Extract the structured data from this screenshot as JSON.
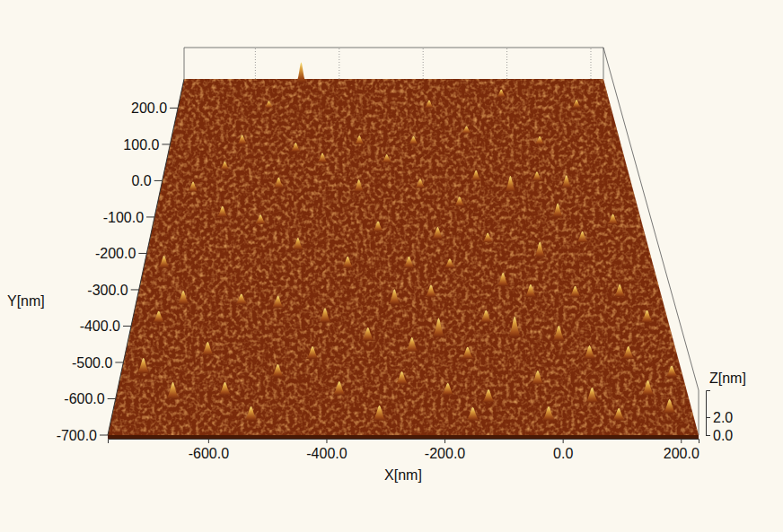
{
  "chart_data": {
    "type": "surface",
    "x_label": "X[nm]",
    "y_label": "Y[nm]",
    "z_label": "Z[nm]",
    "xlim": [
      -770,
      230
    ],
    "ylim": [
      -700,
      280
    ],
    "zlim": [
      0,
      5
    ],
    "xticks": [
      {
        "value": -600,
        "label": "-600.0"
      },
      {
        "value": -400,
        "label": "-400.0"
      },
      {
        "value": -200,
        "label": "-200.0"
      },
      {
        "value": 0,
        "label": "0.0"
      },
      {
        "value": 200,
        "label": "200.0"
      }
    ],
    "yticks": [
      {
        "value": -700,
        "label": "-700.0"
      },
      {
        "value": -600,
        "label": "-600.0"
      },
      {
        "value": -500,
        "label": "-500.0"
      },
      {
        "value": -400,
        "label": "-400.0"
      },
      {
        "value": -300,
        "label": "-300.0"
      },
      {
        "value": -200,
        "label": "-200.0"
      },
      {
        "value": -100,
        "label": "-100.0"
      },
      {
        "value": 0,
        "label": "0.0"
      },
      {
        "value": 100,
        "label": "100.0"
      },
      {
        "value": 200,
        "label": "200.0"
      }
    ],
    "zticks": [
      {
        "value": 0,
        "label": "0.0"
      },
      {
        "value": 2,
        "label": "2.0"
      }
    ],
    "peaks": {
      "x": [
        -490,
        -20,
        150,
        -190,
        -560,
        -110,
        -350,
        -230,
        50,
        -610,
        -490,
        -430,
        -290,
        -30,
        -640,
        -100,
        30,
        -520,
        -220,
        90,
        -350,
        -700,
        -140,
        -630,
        60,
        170,
        -550,
        -310,
        -190,
        -90,
        100,
        -470,
        10,
        -370,
        -730,
        -250,
        -170,
        -70,
        -20,
        -210,
        150,
        65,
        -280,
        -680,
        -570,
        -500,
        -110,
        190,
        -720,
        -410,
        -200,
        -60,
        -330,
        20,
        -250,
        -620,
        70,
        140,
        -150,
        -430,
        -730,
        -490,
        210,
        -30,
        -270,
        160,
        -380,
        -190,
        -670,
        -580,
        -120,
        60,
        190,
        -530,
        -310,
        -150,
        -20,
        100
      ],
      "y": [
        270,
        230,
        200,
        200,
        200,
        130,
        100,
        100,
        100,
        100,
        80,
        50,
        50,
        -30,
        30,
        0,
        0,
        -20,
        -20,
        -20,
        -30,
        -30,
        -70,
        -100,
        -100,
        -120,
        -120,
        -140,
        -160,
        -170,
        -170,
        -190,
        -210,
        -240,
        -240,
        -240,
        -240,
        -290,
        -320,
        -320,
        -320,
        -320,
        -340,
        -340,
        -340,
        -350,
        -390,
        -390,
        -390,
        -390,
        -430,
        -430,
        -440,
        -440,
        -470,
        -480,
        -490,
        -490,
        -490,
        -490,
        -530,
        -540,
        -540,
        -560,
        -560,
        -590,
        -590,
        -590,
        -600,
        -590,
        -610,
        -610,
        -640,
        -660,
        -660,
        -660,
        -660,
        -660
      ],
      "z": [
        3.2,
        1.2,
        1.3,
        1.2,
        1.1,
        1.1,
        1.3,
        1.2,
        1.2,
        1.4,
        1.3,
        1.4,
        1.2,
        2.2,
        1.2,
        1.5,
        1.3,
        1.5,
        1.3,
        1.8,
        1.7,
        1.4,
        1.3,
        1.5,
        1.9,
        1.4,
        1.3,
        1.4,
        1.6,
        1.3,
        1.5,
        1.6,
        2.0,
        1.5,
        1.6,
        1.5,
        1.2,
        1.7,
        1.6,
        1.5,
        1.6,
        1.4,
        1.9,
        1.7,
        1.3,
        1.5,
        1.5,
        1.5,
        1.4,
        1.8,
        2.3,
        2.5,
        1.6,
        1.8,
        1.7,
        1.6,
        1.6,
        1.5,
        1.4,
        1.5,
        1.8,
        1.5,
        1.3,
        1.6,
        1.5,
        1.7,
        1.6,
        1.4,
        1.9,
        1.5,
        1.5,
        1.7,
        1.6,
        1.6,
        1.7,
        1.5,
        1.6,
        1.4
      ]
    }
  }
}
